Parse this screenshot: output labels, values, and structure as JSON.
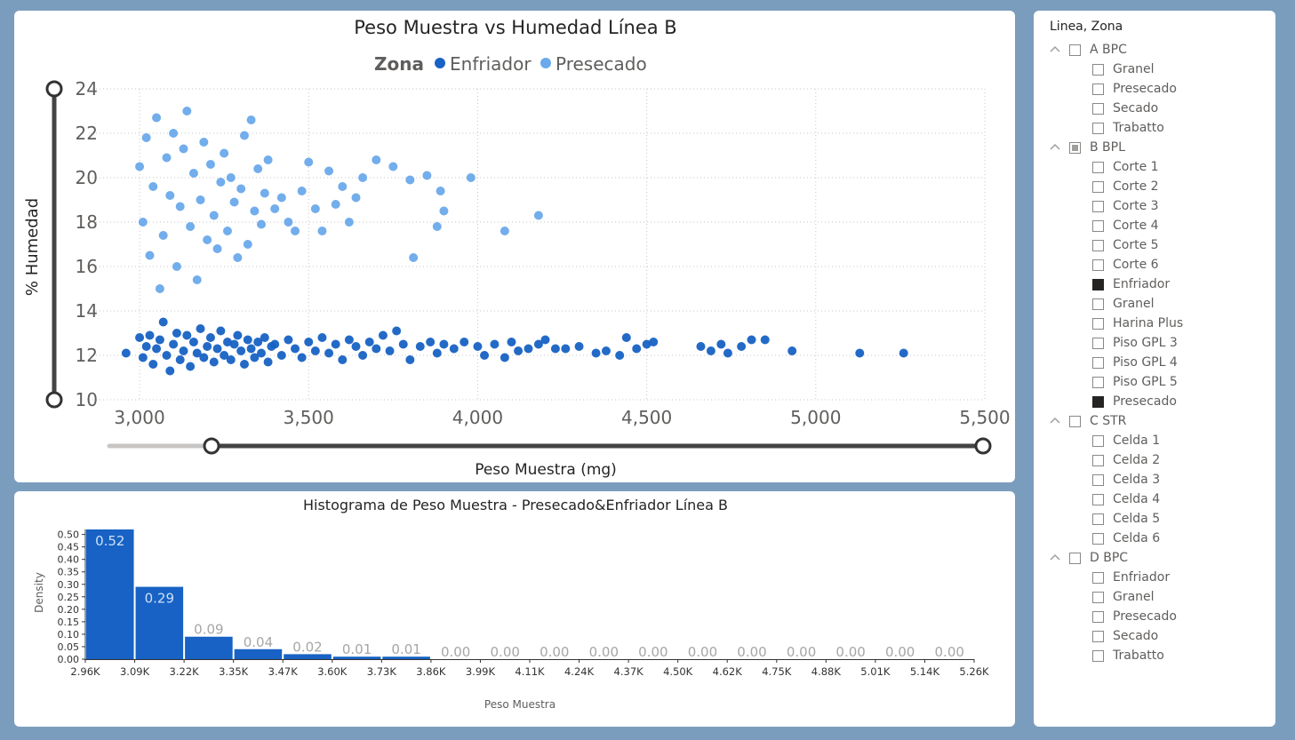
{
  "scatter": {
    "title": "Peso Muestra vs Humedad Línea B",
    "legend_title": "Zona",
    "xlabel": "Peso Muestra (mg)",
    "ylabel": "% Humedad",
    "x_ticks": [
      "3,000",
      "3,500",
      "4,000",
      "4,500",
      "5,000",
      "5,500"
    ],
    "y_ticks": [
      "10",
      "12",
      "14",
      "16",
      "18",
      "20",
      "22",
      "24"
    ],
    "colors": {
      "Enfriador": "#1762c4",
      "Presecado": "#6aa9eb"
    }
  },
  "histogram": {
    "title": "Histograma de Peso Muestra - Presecado&Enfriador Línea B",
    "xlabel": "Peso Muestra",
    "ylabel": "Density",
    "x_ticks": [
      "2.96K",
      "3.09K",
      "3.22K",
      "3.35K",
      "3.47K",
      "3.60K",
      "3.73K",
      "3.86K",
      "3.99K",
      "4.11K",
      "4.24K",
      "4.37K",
      "4.50K",
      "4.62K",
      "4.75K",
      "4.88K",
      "5.01K",
      "5.14K",
      "5.26K"
    ],
    "y_ticks": [
      "0.00",
      "0.05",
      "0.10",
      "0.15",
      "0.20",
      "0.25",
      "0.30",
      "0.35",
      "0.40",
      "0.45",
      "0.50"
    ],
    "bar_labels": [
      "0.52",
      "0.29",
      "0.09",
      "0.04",
      "0.02",
      "0.01",
      "0.01",
      "0.00",
      "0.00",
      "0.00",
      "0.00",
      "0.00",
      "0.00",
      "0.00",
      "0.00",
      "0.00",
      "0.00",
      "0.00"
    ],
    "color": "#1762c4"
  },
  "chart_data": [
    {
      "type": "scatter",
      "title": "Peso Muestra vs Humedad Línea B",
      "xlabel": "Peso Muestra (mg)",
      "ylabel": "% Humedad",
      "xlim": [
        2850,
        5500
      ],
      "ylim": [
        10,
        24
      ],
      "legend": {
        "title": "Zona",
        "placement": "top"
      },
      "grid": true,
      "series": [
        {
          "name": "Enfriador",
          "color": "#1762c4",
          "points": [
            [
              2960,
              12.1
            ],
            [
              3000,
              12.8
            ],
            [
              3010,
              11.9
            ],
            [
              3020,
              12.4
            ],
            [
              3030,
              12.9
            ],
            [
              3040,
              11.6
            ],
            [
              3050,
              12.3
            ],
            [
              3060,
              12.7
            ],
            [
              3070,
              13.5
            ],
            [
              3080,
              12.0
            ],
            [
              3090,
              11.3
            ],
            [
              3100,
              12.5
            ],
            [
              3110,
              13.0
            ],
            [
              3120,
              11.8
            ],
            [
              3130,
              12.2
            ],
            [
              3140,
              12.9
            ],
            [
              3150,
              11.5
            ],
            [
              3160,
              12.6
            ],
            [
              3170,
              12.1
            ],
            [
              3180,
              13.2
            ],
            [
              3190,
              11.9
            ],
            [
              3200,
              12.4
            ],
            [
              3210,
              12.8
            ],
            [
              3220,
              11.7
            ],
            [
              3230,
              12.3
            ],
            [
              3240,
              13.1
            ],
            [
              3250,
              12.0
            ],
            [
              3260,
              12.6
            ],
            [
              3270,
              11.8
            ],
            [
              3280,
              12.5
            ],
            [
              3290,
              12.9
            ],
            [
              3300,
              12.2
            ],
            [
              3310,
              11.6
            ],
            [
              3320,
              12.7
            ],
            [
              3330,
              12.3
            ],
            [
              3340,
              11.9
            ],
            [
              3350,
              12.6
            ],
            [
              3360,
              12.1
            ],
            [
              3370,
              12.8
            ],
            [
              3380,
              11.7
            ],
            [
              3390,
              12.4
            ],
            [
              3400,
              12.5
            ],
            [
              3420,
              12.0
            ],
            [
              3440,
              12.7
            ],
            [
              3460,
              12.3
            ],
            [
              3480,
              11.9
            ],
            [
              3500,
              12.6
            ],
            [
              3520,
              12.2
            ],
            [
              3540,
              12.8
            ],
            [
              3560,
              12.1
            ],
            [
              3580,
              12.5
            ],
            [
              3600,
              11.8
            ],
            [
              3620,
              12.7
            ],
            [
              3640,
              12.4
            ],
            [
              3660,
              12.0
            ],
            [
              3680,
              12.6
            ],
            [
              3700,
              12.3
            ],
            [
              3720,
              12.9
            ],
            [
              3740,
              12.2
            ],
            [
              3760,
              13.1
            ],
            [
              3780,
              12.5
            ],
            [
              3800,
              11.8
            ],
            [
              3830,
              12.4
            ],
            [
              3860,
              12.6
            ],
            [
              3880,
              12.1
            ],
            [
              3900,
              12.5
            ],
            [
              3930,
              12.3
            ],
            [
              3960,
              12.6
            ],
            [
              4000,
              12.4
            ],
            [
              4020,
              12.0
            ],
            [
              4050,
              12.5
            ],
            [
              4080,
              11.9
            ],
            [
              4100,
              12.6
            ],
            [
              4120,
              12.2
            ],
            [
              4150,
              12.3
            ],
            [
              4180,
              12.5
            ],
            [
              4200,
              12.7
            ],
            [
              4230,
              12.3
            ],
            [
              4260,
              12.3
            ],
            [
              4300,
              12.4
            ],
            [
              4350,
              12.1
            ],
            [
              4380,
              12.2
            ],
            [
              4420,
              12.0
            ],
            [
              4440,
              12.8
            ],
            [
              4470,
              12.3
            ],
            [
              4500,
              12.5
            ],
            [
              4520,
              12.6
            ],
            [
              4660,
              12.4
            ],
            [
              4690,
              12.2
            ],
            [
              4720,
              12.5
            ],
            [
              4740,
              12.1
            ],
            [
              4780,
              12.4
            ],
            [
              4810,
              12.7
            ],
            [
              4850,
              12.7
            ],
            [
              4930,
              12.2
            ],
            [
              5130,
              12.1
            ],
            [
              5260,
              12.1
            ]
          ]
        },
        {
          "name": "Presecado",
          "color": "#6aa9eb",
          "points": [
            [
              3000,
              20.5
            ],
            [
              3010,
              18.0
            ],
            [
              3020,
              21.8
            ],
            [
              3030,
              16.5
            ],
            [
              3040,
              19.6
            ],
            [
              3050,
              22.7
            ],
            [
              3060,
              15.0
            ],
            [
              3070,
              17.4
            ],
            [
              3080,
              20.9
            ],
            [
              3090,
              19.2
            ],
            [
              3100,
              22.0
            ],
            [
              3110,
              16.0
            ],
            [
              3120,
              18.7
            ],
            [
              3130,
              21.3
            ],
            [
              3140,
              23.0
            ],
            [
              3150,
              17.8
            ],
            [
              3160,
              20.2
            ],
            [
              3170,
              15.4
            ],
            [
              3180,
              19.0
            ],
            [
              3190,
              21.6
            ],
            [
              3200,
              17.2
            ],
            [
              3210,
              20.6
            ],
            [
              3220,
              18.3
            ],
            [
              3230,
              16.8
            ],
            [
              3240,
              19.8
            ],
            [
              3250,
              21.1
            ],
            [
              3260,
              17.6
            ],
            [
              3270,
              20.0
            ],
            [
              3280,
              18.9
            ],
            [
              3290,
              16.4
            ],
            [
              3300,
              19.5
            ],
            [
              3310,
              21.9
            ],
            [
              3320,
              17.0
            ],
            [
              3330,
              22.6
            ],
            [
              3340,
              18.5
            ],
            [
              3350,
              20.4
            ],
            [
              3360,
              17.9
            ],
            [
              3370,
              19.3
            ],
            [
              3380,
              20.8
            ],
            [
              3400,
              18.6
            ],
            [
              3420,
              19.1
            ],
            [
              3440,
              18.0
            ],
            [
              3460,
              17.6
            ],
            [
              3480,
              19.4
            ],
            [
              3500,
              20.7
            ],
            [
              3520,
              18.6
            ],
            [
              3540,
              17.6
            ],
            [
              3560,
              20.3
            ],
            [
              3580,
              18.8
            ],
            [
              3600,
              19.6
            ],
            [
              3620,
              18.0
            ],
            [
              3640,
              19.1
            ],
            [
              3660,
              20.0
            ],
            [
              3700,
              20.8
            ],
            [
              3750,
              20.5
            ],
            [
              3800,
              19.9
            ],
            [
              3810,
              16.4
            ],
            [
              3850,
              20.1
            ],
            [
              3880,
              17.8
            ],
            [
              3890,
              19.4
            ],
            [
              3900,
              18.5
            ],
            [
              3980,
              20.0
            ],
            [
              4080,
              17.6
            ],
            [
              4180,
              18.3
            ]
          ]
        }
      ]
    },
    {
      "type": "bar",
      "title": "Histograma de Peso Muestra - Presecado&Enfriador Línea B",
      "xlabel": "Peso Muestra",
      "ylabel": "Density",
      "ylim": [
        0,
        0.52
      ],
      "bin_edges": [
        "2.96K",
        "3.09K",
        "3.22K",
        "3.35K",
        "3.47K",
        "3.60K",
        "3.73K",
        "3.86K",
        "3.99K",
        "4.11K",
        "4.24K",
        "4.37K",
        "4.50K",
        "4.62K",
        "4.75K",
        "4.88K",
        "5.01K",
        "5.14K",
        "5.26K"
      ],
      "values": [
        0.52,
        0.29,
        0.09,
        0.04,
        0.02,
        0.01,
        0.01,
        0.0,
        0.0,
        0.0,
        0.0,
        0.0,
        0.0,
        0.0,
        0.0,
        0.0,
        0.0,
        0.0
      ]
    }
  ],
  "slicer": {
    "header": "Linea, Zona",
    "groups": [
      {
        "label": "A BPC",
        "state": "unchecked",
        "items": [
          {
            "label": "Granel",
            "checked": false
          },
          {
            "label": "Presecado",
            "checked": false
          },
          {
            "label": "Secado",
            "checked": false
          },
          {
            "label": "Trabatto",
            "checked": false
          }
        ]
      },
      {
        "label": "B BPL",
        "state": "partial",
        "items": [
          {
            "label": "Corte 1",
            "checked": false
          },
          {
            "label": "Corte 2",
            "checked": false
          },
          {
            "label": "Corte 3",
            "checked": false
          },
          {
            "label": "Corte 4",
            "checked": false
          },
          {
            "label": "Corte 5",
            "checked": false
          },
          {
            "label": "Corte 6",
            "checked": false
          },
          {
            "label": "Enfriador",
            "checked": true
          },
          {
            "label": "Granel",
            "checked": false
          },
          {
            "label": "Harina Plus",
            "checked": false
          },
          {
            "label": "Piso GPL 3",
            "checked": false
          },
          {
            "label": "Piso GPL 4",
            "checked": false
          },
          {
            "label": "Piso GPL 5",
            "checked": false
          },
          {
            "label": "Presecado",
            "checked": true
          }
        ]
      },
      {
        "label": "C STR",
        "state": "unchecked",
        "items": [
          {
            "label": "Celda 1",
            "checked": false
          },
          {
            "label": "Celda 2",
            "checked": false
          },
          {
            "label": "Celda 3",
            "checked": false
          },
          {
            "label": "Celda 4",
            "checked": false
          },
          {
            "label": "Celda 5",
            "checked": false
          },
          {
            "label": "Celda 6",
            "checked": false
          }
        ]
      },
      {
        "label": "D BPC",
        "state": "unchecked",
        "items": [
          {
            "label": "Enfriador",
            "checked": false
          },
          {
            "label": "Granel",
            "checked": false
          },
          {
            "label": "Presecado",
            "checked": false
          },
          {
            "label": "Secado",
            "checked": false
          },
          {
            "label": "Trabatto",
            "checked": false
          }
        ]
      }
    ]
  }
}
